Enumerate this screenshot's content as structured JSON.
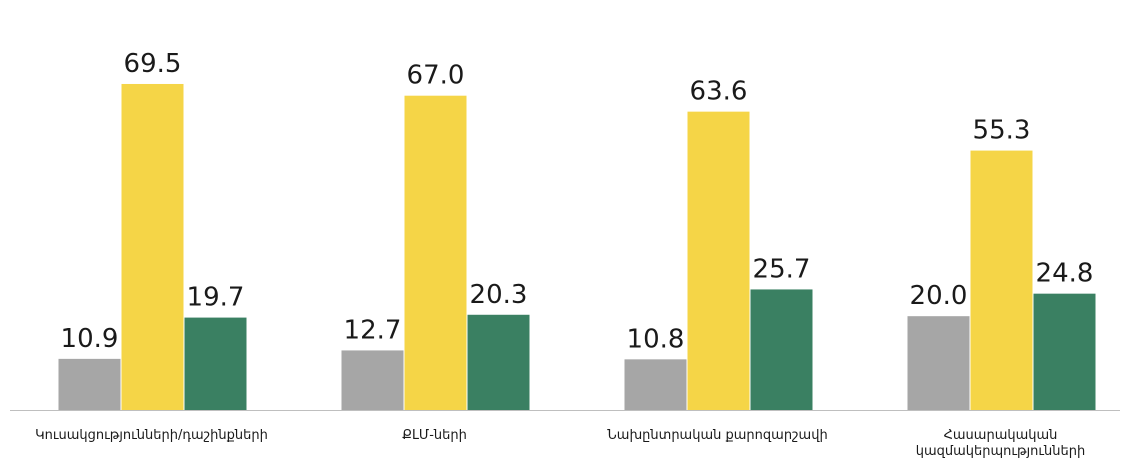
{
  "chart_data": {
    "type": "bar",
    "categories": [
      "Կուսակցությունների/դաշինքների",
      "ՔԼՄ-ների",
      "Նախընտրական քարոզարշավի",
      "Հասարակական\nկազմակերպությունների"
    ],
    "series": [
      {
        "color": "#a6a6a6",
        "values": [
          10.9,
          12.7,
          10.8,
          20.0
        ],
        "value_labels": [
          "10.9",
          "12.7",
          "10.8",
          "20.0"
        ]
      },
      {
        "color": "#f5d547",
        "values": [
          69.5,
          67.0,
          63.6,
          55.3
        ],
        "value_labels": [
          "69.5",
          "67.0",
          "63.6",
          "55.3"
        ]
      },
      {
        "color": "#3a8062",
        "values": [
          19.7,
          20.3,
          25.7,
          24.8
        ],
        "value_labels": [
          "19.7",
          "20.3",
          "25.7",
          "24.8"
        ]
      }
    ],
    "ylim": [
      0,
      87.4
    ]
  }
}
